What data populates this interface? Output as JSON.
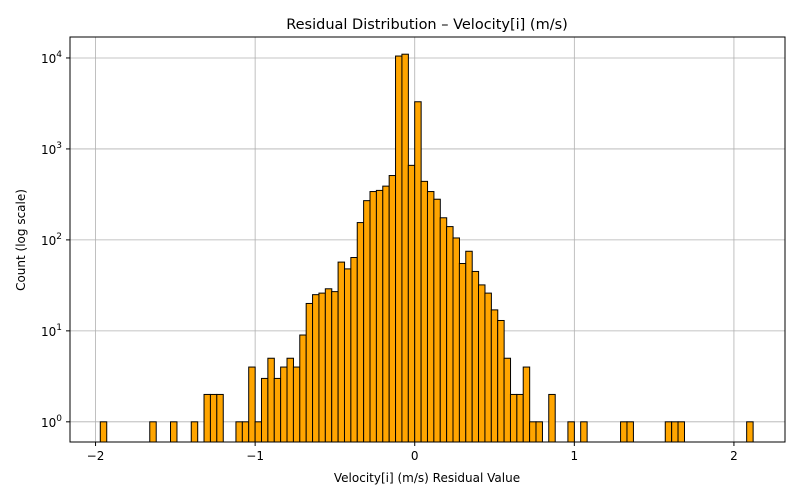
{
  "chart_data": {
    "type": "bar",
    "title": "Residual Distribution – Velocity[i] (m/s)",
    "xlabel": "Velocity[i] (m/s) Residual Value",
    "ylabel": "Count (log scale)",
    "yscale": "log",
    "xlim": [
      -2.16,
      2.32
    ],
    "ylim": [
      0.6,
      17000
    ],
    "grid": true,
    "bar_color": "#ffa500",
    "edge_color": "#000000",
    "bin_width": 0.0405,
    "x_ticks": [
      {
        "value": -2,
        "label": "−2"
      },
      {
        "value": -1,
        "label": "−1"
      },
      {
        "value": 0,
        "label": "0"
      },
      {
        "value": 1,
        "label": "1"
      },
      {
        "value": 2,
        "label": "2"
      }
    ],
    "y_ticks": [
      {
        "value": 1,
        "base": "10",
        "exp": "0"
      },
      {
        "value": 10,
        "base": "10",
        "exp": "1"
      },
      {
        "value": 100,
        "base": "10",
        "exp": "2"
      },
      {
        "value": 1000,
        "base": "10",
        "exp": "3"
      },
      {
        "value": 10000,
        "base": "10",
        "exp": "4"
      }
    ],
    "bins": [
      {
        "x": -1.95,
        "count": 1
      },
      {
        "x": -1.64,
        "count": 1
      },
      {
        "x": -1.51,
        "count": 1
      },
      {
        "x": -1.38,
        "count": 1
      },
      {
        "x": -1.3,
        "count": 2
      },
      {
        "x": -1.26,
        "count": 2
      },
      {
        "x": -1.22,
        "count": 2
      },
      {
        "x": -1.1,
        "count": 1
      },
      {
        "x": -1.06,
        "count": 1
      },
      {
        "x": -1.02,
        "count": 4
      },
      {
        "x": -0.98,
        "count": 1
      },
      {
        "x": -0.94,
        "count": 3
      },
      {
        "x": -0.9,
        "count": 5
      },
      {
        "x": -0.86,
        "count": 3
      },
      {
        "x": -0.82,
        "count": 4
      },
      {
        "x": -0.78,
        "count": 5
      },
      {
        "x": -0.74,
        "count": 4
      },
      {
        "x": -0.7,
        "count": 9
      },
      {
        "x": -0.66,
        "count": 20
      },
      {
        "x": -0.62,
        "count": 25
      },
      {
        "x": -0.58,
        "count": 26
      },
      {
        "x": -0.54,
        "count": 29
      },
      {
        "x": -0.5,
        "count": 27
      },
      {
        "x": -0.46,
        "count": 57
      },
      {
        "x": -0.42,
        "count": 48
      },
      {
        "x": -0.38,
        "count": 64
      },
      {
        "x": -0.34,
        "count": 155
      },
      {
        "x": -0.3,
        "count": 270
      },
      {
        "x": -0.26,
        "count": 340
      },
      {
        "x": -0.22,
        "count": 350
      },
      {
        "x": -0.18,
        "count": 390
      },
      {
        "x": -0.14,
        "count": 510
      },
      {
        "x": -0.1,
        "count": 10500
      },
      {
        "x": -0.06,
        "count": 11000
      },
      {
        "x": -0.02,
        "count": 660
      },
      {
        "x": 0.02,
        "count": 3300
      },
      {
        "x": 0.06,
        "count": 440
      },
      {
        "x": 0.1,
        "count": 340
      },
      {
        "x": 0.14,
        "count": 280
      },
      {
        "x": 0.18,
        "count": 175
      },
      {
        "x": 0.22,
        "count": 140
      },
      {
        "x": 0.26,
        "count": 105
      },
      {
        "x": 0.3,
        "count": 55
      },
      {
        "x": 0.34,
        "count": 75
      },
      {
        "x": 0.38,
        "count": 45
      },
      {
        "x": 0.42,
        "count": 32
      },
      {
        "x": 0.46,
        "count": 26
      },
      {
        "x": 0.5,
        "count": 17
      },
      {
        "x": 0.54,
        "count": 13
      },
      {
        "x": 0.58,
        "count": 5
      },
      {
        "x": 0.62,
        "count": 2
      },
      {
        "x": 0.66,
        "count": 2
      },
      {
        "x": 0.7,
        "count": 4
      },
      {
        "x": 0.74,
        "count": 1
      },
      {
        "x": 0.78,
        "count": 1
      },
      {
        "x": 0.86,
        "count": 2
      },
      {
        "x": 0.98,
        "count": 1
      },
      {
        "x": 1.06,
        "count": 1
      },
      {
        "x": 1.31,
        "count": 1
      },
      {
        "x": 1.35,
        "count": 1
      },
      {
        "x": 1.59,
        "count": 1
      },
      {
        "x": 1.63,
        "count": 1
      },
      {
        "x": 1.67,
        "count": 1
      },
      {
        "x": 2.1,
        "count": 1
      }
    ]
  }
}
